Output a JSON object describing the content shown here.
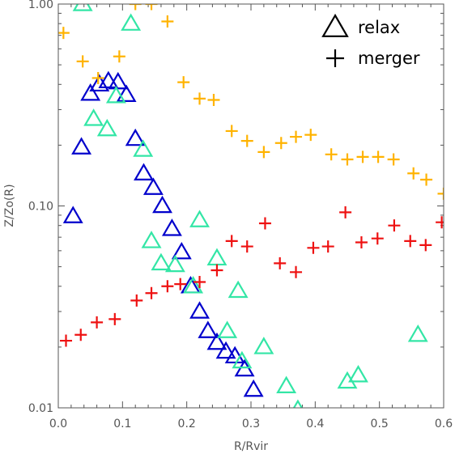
{
  "chart_data": {
    "type": "scatter",
    "xlabel": "R/Rvir",
    "ylabel": "Z/Zo(R)",
    "xlim": [
      0,
      0.6
    ],
    "ylim": [
      0.01,
      1.0
    ],
    "yscale": "log",
    "x_ticks": [
      {
        "value": 0.0,
        "label": "0.0"
      },
      {
        "value": 0.1,
        "label": "0.1"
      },
      {
        "value": 0.2,
        "label": "0.2"
      },
      {
        "value": 0.3,
        "label": "0.3"
      },
      {
        "value": 0.4,
        "label": "0.4"
      },
      {
        "value": 0.5,
        "label": "0.5"
      },
      {
        "value": 0.6,
        "label": "0.6"
      }
    ],
    "y_ticks": [
      {
        "value": 0.01,
        "label": "0.01"
      },
      {
        "value": 0.1,
        "label": "0.10"
      },
      {
        "value": 1.0,
        "label": "1.00"
      }
    ],
    "grid": false,
    "legend_position": "top-right",
    "legend": [
      {
        "label": "relax",
        "marker": "triangle"
      },
      {
        "label": "merger",
        "marker": "plus"
      }
    ],
    "series": [
      {
        "marker": "triangle",
        "color": "#0000cc",
        "points": [
          [
            0.023,
            0.089
          ],
          [
            0.036,
            0.195
          ],
          [
            0.05,
            0.36
          ],
          [
            0.064,
            0.4
          ],
          [
            0.078,
            0.415
          ],
          [
            0.093,
            0.41
          ],
          [
            0.106,
            0.355
          ],
          [
            0.12,
            0.215
          ],
          [
            0.133,
            0.145
          ],
          [
            0.148,
            0.123
          ],
          [
            0.162,
            0.1
          ],
          [
            0.177,
            0.077
          ],
          [
            0.192,
            0.059
          ],
          [
            0.206,
            0.04
          ],
          [
            0.22,
            0.03
          ],
          [
            0.233,
            0.024
          ],
          [
            0.247,
            0.021
          ],
          [
            0.261,
            0.019
          ],
          [
            0.275,
            0.018
          ],
          [
            0.29,
            0.0155
          ],
          [
            0.304,
            0.0123
          ]
        ]
      },
      {
        "marker": "triangle",
        "color": "#33e6a6",
        "points": [
          [
            0.038,
            1.0
          ],
          [
            0.055,
            0.27
          ],
          [
            0.076,
            0.24
          ],
          [
            0.09,
            0.35
          ],
          [
            0.113,
            0.8
          ],
          [
            0.132,
            0.19
          ],
          [
            0.145,
            0.067
          ],
          [
            0.16,
            0.052
          ],
          [
            0.182,
            0.051
          ],
          [
            0.21,
            0.04
          ],
          [
            0.22,
            0.085
          ],
          [
            0.247,
            0.055
          ],
          [
            0.263,
            0.024
          ],
          [
            0.28,
            0.038
          ],
          [
            0.286,
            0.017
          ],
          [
            0.32,
            0.02
          ],
          [
            0.355,
            0.0128
          ],
          [
            0.373,
            0.0098
          ],
          [
            0.45,
            0.0135
          ],
          [
            0.467,
            0.0145
          ],
          [
            0.56,
            0.023
          ]
        ]
      },
      {
        "marker": "plus",
        "color": "#ffb300",
        "points": [
          [
            0.008,
            0.72
          ],
          [
            0.038,
            0.52
          ],
          [
            0.062,
            0.43
          ],
          [
            0.095,
            0.55
          ],
          [
            0.12,
            1.0
          ],
          [
            0.145,
            1.0
          ],
          [
            0.17,
            0.82
          ],
          [
            0.195,
            0.41
          ],
          [
            0.22,
            0.34
          ],
          [
            0.242,
            0.335
          ],
          [
            0.27,
            0.235
          ],
          [
            0.294,
            0.21
          ],
          [
            0.32,
            0.185
          ],
          [
            0.347,
            0.205
          ],
          [
            0.37,
            0.22
          ],
          [
            0.393,
            0.225
          ],
          [
            0.425,
            0.18
          ],
          [
            0.45,
            0.17
          ],
          [
            0.474,
            0.175
          ],
          [
            0.498,
            0.175
          ],
          [
            0.522,
            0.17
          ],
          [
            0.553,
            0.145
          ],
          [
            0.573,
            0.135
          ],
          [
            0.6,
            0.115
          ]
        ]
      },
      {
        "marker": "plus",
        "color": "#ee1111",
        "points": [
          [
            0.012,
            0.0215
          ],
          [
            0.035,
            0.023
          ],
          [
            0.06,
            0.0265
          ],
          [
            0.088,
            0.0275
          ],
          [
            0.122,
            0.034
          ],
          [
            0.145,
            0.037
          ],
          [
            0.17,
            0.04
          ],
          [
            0.19,
            0.041
          ],
          [
            0.22,
            0.042
          ],
          [
            0.247,
            0.048
          ],
          [
            0.27,
            0.067
          ],
          [
            0.294,
            0.063
          ],
          [
            0.322,
            0.082
          ],
          [
            0.345,
            0.052
          ],
          [
            0.37,
            0.047
          ],
          [
            0.397,
            0.062
          ],
          [
            0.42,
            0.063
          ],
          [
            0.447,
            0.093
          ],
          [
            0.472,
            0.066
          ],
          [
            0.497,
            0.069
          ],
          [
            0.523,
            0.08
          ],
          [
            0.548,
            0.067
          ],
          [
            0.572,
            0.064
          ],
          [
            0.597,
            0.083
          ]
        ]
      }
    ]
  }
}
